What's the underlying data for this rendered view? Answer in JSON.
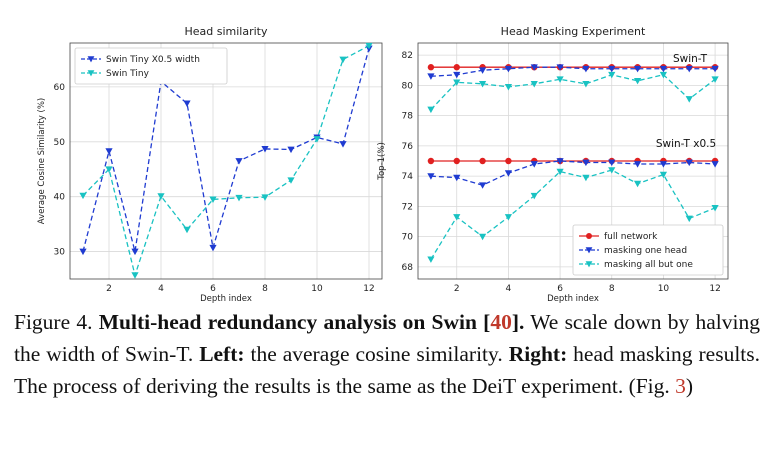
{
  "colors": {
    "blue": "#1f3bd1",
    "cyan": "#19c2c2",
    "red": "#e02020"
  },
  "chart_data": [
    {
      "type": "line",
      "title": "Head similarity",
      "xlabel": "Depth index",
      "ylabel": "Average Cosine Similarity (%)",
      "xlim": [
        0.5,
        12.5
      ],
      "ylim": [
        25,
        68
      ],
      "xticks": [
        2,
        4,
        6,
        8,
        10,
        12
      ],
      "yticks": [
        30,
        40,
        50,
        60
      ],
      "legend": "top-left",
      "x": [
        1,
        2,
        3,
        4,
        5,
        6,
        7,
        8,
        9,
        10,
        11,
        12
      ],
      "series": [
        {
          "name": "Swin Tiny X0.5 width",
          "color": "#1f3bd1",
          "values": [
            30.0,
            48.3,
            30.0,
            61.0,
            57.0,
            30.7,
            46.5,
            48.7,
            48.6,
            50.8,
            49.6,
            67.0
          ]
        },
        {
          "name": "Swin Tiny",
          "color": "#19c2c2",
          "values": [
            40.2,
            45.0,
            25.7,
            40.1,
            34.0,
            39.5,
            39.8,
            39.9,
            43.0,
            50.5,
            65.0,
            67.5
          ]
        }
      ]
    },
    {
      "type": "line",
      "title": "Head Masking Experiment",
      "xlabel": "Depth index",
      "ylabel": "Top-1(%)",
      "xlim": [
        0.5,
        12.5
      ],
      "ylim": [
        67.2,
        82.8
      ],
      "xticks": [
        2,
        4,
        6,
        8,
        10,
        12
      ],
      "yticks": [
        68,
        70,
        72,
        74,
        76,
        78,
        80,
        82
      ],
      "legend": "bottom-right",
      "annotations": [
        "Swin-T",
        "Swin-T x0.5"
      ],
      "x": [
        1,
        2,
        3,
        4,
        5,
        6,
        7,
        8,
        9,
        10,
        11,
        12
      ],
      "series": [
        {
          "name": "full network",
          "color": "#e02020",
          "marker": "circle",
          "dash": "solid",
          "values": [
            81.2,
            81.2,
            81.2,
            81.2,
            81.2,
            81.2,
            81.2,
            81.2,
            81.2,
            81.2,
            81.2,
            81.2
          ]
        },
        {
          "name": "masking one head",
          "color": "#1f3bd1",
          "marker": "triangle",
          "dash": "dashed",
          "values": [
            80.6,
            80.7,
            81.0,
            81.1,
            81.2,
            81.2,
            81.1,
            81.1,
            81.1,
            81.1,
            81.1,
            81.1
          ]
        },
        {
          "name": "masking all but one",
          "color": "#19c2c2",
          "marker": "triangle",
          "dash": "dashed",
          "values": [
            78.4,
            80.2,
            80.1,
            79.9,
            80.1,
            80.4,
            80.1,
            80.7,
            80.3,
            80.7,
            79.1,
            80.4
          ]
        },
        {
          "name": "full network",
          "color": "#e02020",
          "marker": "circle",
          "dash": "solid",
          "legend": false,
          "values": [
            75.0,
            75.0,
            75.0,
            75.0,
            75.0,
            75.0,
            75.0,
            75.0,
            75.0,
            75.0,
            75.0,
            75.0
          ]
        },
        {
          "name": "masking one head",
          "color": "#1f3bd1",
          "marker": "triangle",
          "dash": "dashed",
          "legend": false,
          "values": [
            74.0,
            73.9,
            73.4,
            74.2,
            74.8,
            75.0,
            74.9,
            74.9,
            74.8,
            74.8,
            74.9,
            74.8
          ]
        },
        {
          "name": "masking all but one",
          "color": "#19c2c2",
          "marker": "triangle",
          "dash": "dashed",
          "legend": false,
          "values": [
            68.5,
            71.3,
            70.0,
            71.3,
            72.7,
            74.3,
            73.9,
            74.4,
            73.5,
            74.1,
            71.2,
            71.9
          ]
        }
      ]
    }
  ],
  "caption": {
    "prefix": "Figure 4. ",
    "bold_title": "Multi-head redundancy analysis on Swin [",
    "title_ref": "40",
    "bold_title_end": "].",
    "text1": " We scale down by halving the width of Swin-T. ",
    "left_label": "Left:",
    "text2": " the average cosine similarity. ",
    "right_label": "Right:",
    "text3": " head masking results. The process of deriving the results is the same as the DeiT experiment. (Fig. ",
    "fig_ref": "3",
    "text4": ")"
  }
}
